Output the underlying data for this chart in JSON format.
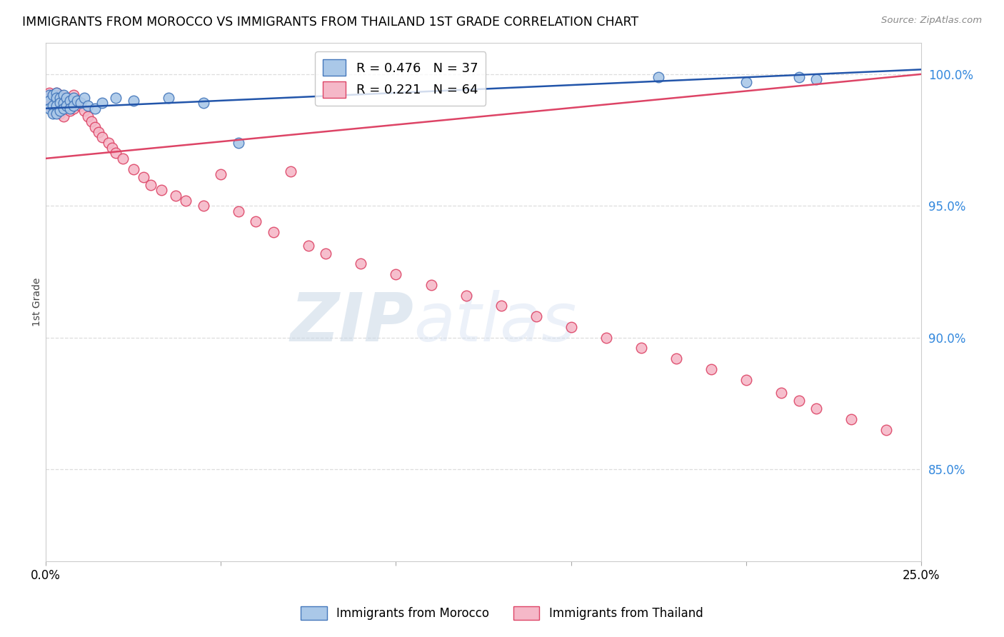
{
  "title": "IMMIGRANTS FROM MOROCCO VS IMMIGRANTS FROM THAILAND 1ST GRADE CORRELATION CHART",
  "source": "Source: ZipAtlas.com",
  "ylabel": "1st Grade",
  "ylabel_right_labels": [
    "100.0%",
    "95.0%",
    "90.0%",
    "85.0%"
  ],
  "ylabel_right_values": [
    1.0,
    0.95,
    0.9,
    0.85
  ],
  "xlim": [
    0.0,
    0.25
  ],
  "ylim": [
    0.815,
    1.012
  ],
  "morocco_color": "#aac8e8",
  "thailand_color": "#f5b8c8",
  "morocco_edge_color": "#4477bb",
  "thailand_edge_color": "#dd4466",
  "morocco_line_color": "#2255aa",
  "thailand_line_color": "#dd4466",
  "legend_morocco_R": "0.476",
  "legend_morocco_N": "37",
  "legend_thailand_R": "0.221",
  "legend_thailand_N": "64",
  "morocco_x": [
    0.001,
    0.001,
    0.001,
    0.002,
    0.002,
    0.002,
    0.003,
    0.003,
    0.003,
    0.003,
    0.004,
    0.004,
    0.004,
    0.005,
    0.005,
    0.005,
    0.006,
    0.006,
    0.007,
    0.007,
    0.008,
    0.008,
    0.009,
    0.01,
    0.011,
    0.012,
    0.014,
    0.016,
    0.02,
    0.025,
    0.035,
    0.045,
    0.055,
    0.175,
    0.2,
    0.215,
    0.22
  ],
  "morocco_y": [
    0.992,
    0.99,
    0.987,
    0.992,
    0.988,
    0.985,
    0.993,
    0.991,
    0.988,
    0.985,
    0.991,
    0.989,
    0.986,
    0.992,
    0.989,
    0.987,
    0.991,
    0.988,
    0.99,
    0.987,
    0.991,
    0.988,
    0.99,
    0.989,
    0.991,
    0.988,
    0.987,
    0.989,
    0.991,
    0.99,
    0.991,
    0.989,
    0.974,
    0.999,
    0.997,
    0.999,
    0.998
  ],
  "thailand_x": [
    0.001,
    0.001,
    0.001,
    0.002,
    0.002,
    0.002,
    0.003,
    0.003,
    0.003,
    0.004,
    0.004,
    0.004,
    0.005,
    0.005,
    0.005,
    0.006,
    0.006,
    0.007,
    0.007,
    0.008,
    0.008,
    0.009,
    0.01,
    0.011,
    0.012,
    0.013,
    0.014,
    0.015,
    0.016,
    0.018,
    0.019,
    0.02,
    0.022,
    0.025,
    0.028,
    0.03,
    0.033,
    0.037,
    0.04,
    0.045,
    0.05,
    0.055,
    0.06,
    0.065,
    0.07,
    0.075,
    0.08,
    0.09,
    0.1,
    0.11,
    0.12,
    0.13,
    0.14,
    0.15,
    0.16,
    0.17,
    0.18,
    0.19,
    0.2,
    0.21,
    0.215,
    0.22,
    0.23,
    0.24
  ],
  "thailand_y": [
    0.993,
    0.991,
    0.988,
    0.992,
    0.989,
    0.986,
    0.993,
    0.99,
    0.987,
    0.992,
    0.989,
    0.985,
    0.991,
    0.988,
    0.984,
    0.991,
    0.987,
    0.99,
    0.986,
    0.992,
    0.987,
    0.989,
    0.988,
    0.986,
    0.984,
    0.982,
    0.98,
    0.978,
    0.976,
    0.974,
    0.972,
    0.97,
    0.968,
    0.964,
    0.961,
    0.958,
    0.956,
    0.954,
    0.952,
    0.95,
    0.962,
    0.948,
    0.944,
    0.94,
    0.963,
    0.935,
    0.932,
    0.928,
    0.924,
    0.92,
    0.916,
    0.912,
    0.908,
    0.904,
    0.9,
    0.896,
    0.892,
    0.888,
    0.884,
    0.879,
    0.876,
    0.873,
    0.869,
    0.865
  ],
  "watermark_zip_color": "#c8d8e8",
  "watermark_atlas_color": "#c8d8f8",
  "grid_color": "#dddddd",
  "grid_linestyle": "--",
  "spine_color": "#cccccc"
}
